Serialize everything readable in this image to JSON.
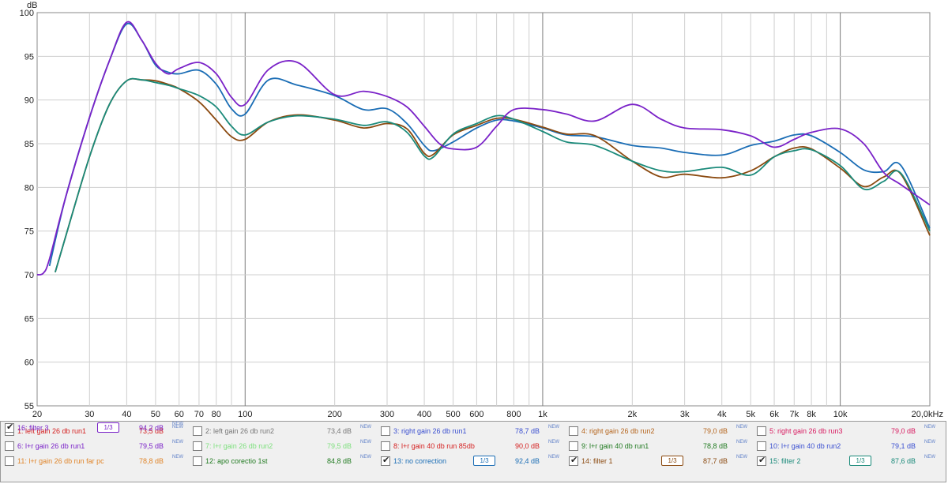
{
  "chart_data": {
    "type": "line",
    "xscale": "log",
    "xlim": [
      20,
      20000
    ],
    "ylim": [
      55,
      100
    ],
    "ylabel": "dB",
    "grid": true,
    "yticks": [
      "55",
      "60",
      "65",
      "70",
      "75",
      "80",
      "85",
      "90",
      "95",
      "100"
    ],
    "xticks": [
      {
        "f": 20,
        "label": "20"
      },
      {
        "f": 30,
        "label": "30"
      },
      {
        "f": 40,
        "label": "40"
      },
      {
        "f": 50,
        "label": "50"
      },
      {
        "f": 60,
        "label": "60"
      },
      {
        "f": 70,
        "label": "70"
      },
      {
        "f": 80,
        "label": "80"
      },
      {
        "f": 100,
        "label": "100"
      },
      {
        "f": 200,
        "label": "200"
      },
      {
        "f": 300,
        "label": "300"
      },
      {
        "f": 400,
        "label": "400"
      },
      {
        "f": 500,
        "label": "500"
      },
      {
        "f": 600,
        "label": "600"
      },
      {
        "f": 800,
        "label": "800"
      },
      {
        "f": 1000,
        "label": "1k"
      },
      {
        "f": 2000,
        "label": "2k"
      },
      {
        "f": 3000,
        "label": "3k"
      },
      {
        "f": 4000,
        "label": "4k"
      },
      {
        "f": 5000,
        "label": "5k"
      },
      {
        "f": 6000,
        "label": "6k"
      },
      {
        "f": 7000,
        "label": "7k"
      },
      {
        "f": 8000,
        "label": "8k"
      },
      {
        "f": 10000,
        "label": "10k"
      },
      {
        "f": 20000,
        "label": "20,0kHz"
      }
    ],
    "series": [
      {
        "name": "13: no correction",
        "color": "#1a6db5",
        "x": [
          22,
          25,
          30,
          35,
          40,
          45,
          50,
          55,
          60,
          70,
          80,
          90,
          100,
          120,
          150,
          200,
          250,
          300,
          350,
          400,
          430,
          500,
          600,
          700,
          800,
          1000,
          1200,
          1500,
          2000,
          2500,
          3000,
          4000,
          5000,
          6000,
          7000,
          8000,
          10000,
          12000,
          14000,
          16000,
          20000
        ],
        "y": [
          71,
          79,
          88,
          94.5,
          98.7,
          96.8,
          94,
          93.2,
          93,
          93.4,
          91.8,
          89,
          88.4,
          92.3,
          91.7,
          90.5,
          88.9,
          89,
          87.3,
          84.8,
          84.2,
          85.2,
          86.8,
          87.7,
          87.6,
          86.8,
          86,
          85.8,
          84.8,
          84.5,
          84,
          83.7,
          84.8,
          85.3,
          86,
          85.9,
          84,
          82,
          81.8,
          82.5,
          75.3
        ]
      },
      {
        "name": "14: filter 1",
        "color": "#8b4a10",
        "x": [
          23,
          25,
          30,
          35,
          40,
          45,
          50,
          55,
          60,
          70,
          80,
          90,
          100,
          120,
          150,
          200,
          250,
          300,
          350,
          400,
          430,
          500,
          600,
          700,
          800,
          1000,
          1200,
          1500,
          2000,
          2500,
          3000,
          4000,
          5000,
          6000,
          7000,
          8000,
          10000,
          12000,
          14000,
          16000,
          20000
        ],
        "y": [
          70.3,
          74.5,
          83.5,
          89.5,
          92.2,
          92.3,
          92.2,
          91.8,
          91.3,
          89.8,
          87.7,
          85.8,
          85.5,
          87.5,
          88.3,
          87.7,
          86.8,
          87.3,
          86.7,
          83.9,
          83.8,
          86,
          87.1,
          87.9,
          87.8,
          86.9,
          86.1,
          85.9,
          83,
          81.2,
          81.5,
          81.1,
          81.9,
          83.5,
          84.5,
          84.4,
          82.2,
          80.1,
          81.2,
          81.5,
          74.5
        ]
      },
      {
        "name": "15: filter 2",
        "color": "#1a8a7a",
        "x": [
          23,
          25,
          30,
          35,
          40,
          45,
          50,
          55,
          60,
          70,
          80,
          90,
          100,
          120,
          150,
          200,
          250,
          300,
          350,
          400,
          430,
          500,
          600,
          700,
          800,
          1000,
          1200,
          1500,
          2000,
          2500,
          3000,
          4000,
          5000,
          6000,
          7000,
          8000,
          10000,
          12000,
          14000,
          16000,
          20000
        ],
        "y": [
          70.3,
          74.5,
          83.5,
          89.5,
          92.2,
          92.3,
          92,
          91.7,
          91.3,
          90.5,
          89.2,
          87,
          86,
          87.5,
          88.2,
          87.8,
          87.1,
          87.5,
          86.3,
          83.6,
          83.5,
          86.1,
          87.3,
          88.2,
          87.8,
          86.4,
          85.2,
          84.8,
          83,
          81.9,
          81.8,
          82.3,
          81.4,
          83.5,
          84.2,
          84.3,
          82.5,
          79.8,
          80.7,
          81.6,
          75
        ]
      },
      {
        "name": "16: filter 3",
        "color": "#7a22c8",
        "x": [
          20,
          21,
          22,
          25,
          30,
          35,
          40,
          45,
          50,
          55,
          60,
          70,
          80,
          90,
          100,
          120,
          150,
          200,
          250,
          300,
          350,
          400,
          450,
          500,
          600,
          700,
          800,
          1000,
          1200,
          1500,
          2000,
          2500,
          3000,
          4000,
          5000,
          6000,
          7000,
          8000,
          10000,
          12000,
          14000,
          16000,
          20000
        ],
        "y": [
          70,
          70.2,
          71.8,
          79,
          88,
          94.5,
          98.9,
          96.8,
          94.2,
          93,
          93.6,
          94.3,
          93,
          90.3,
          89.5,
          93.5,
          94.3,
          90.6,
          91,
          90.4,
          89.2,
          87,
          85,
          84.4,
          84.6,
          87,
          88.9,
          88.9,
          88.4,
          87.6,
          89.5,
          87.8,
          86.8,
          86.6,
          85.9,
          84.6,
          85.5,
          86.3,
          86.7,
          85,
          81.7,
          80.3,
          78
        ]
      }
    ]
  },
  "legend": {
    "new_tag": "NEW",
    "smooth_label": "1/3",
    "items": [
      {
        "label": "1: left gain 26 db run1",
        "value": "73,5 dB",
        "color": "#d41f1f",
        "checked": false,
        "smooth": false
      },
      {
        "label": "2: left gain 26 db run2",
        "value": "73,4 dB",
        "color": "#777777",
        "checked": false,
        "smooth": false
      },
      {
        "label": "3: right gain 26 db run1",
        "value": "78,7 dB",
        "color": "#3a4fd0",
        "checked": false,
        "smooth": false
      },
      {
        "label": "4: right gain 26 db run2",
        "value": "79,0 dB",
        "color": "#b5651d",
        "checked": false,
        "smooth": false
      },
      {
        "label": "5: right gain 26 db run3",
        "value": "79,0 dB",
        "color": "#d81b60",
        "checked": false,
        "smooth": false
      },
      {
        "label": "6: l+r gain 26 db run1",
        "value": "79,5 dB",
        "color": "#7a22c8",
        "checked": false,
        "smooth": false
      },
      {
        "label": "7: l+r gain 26 db run2",
        "value": "79,5 dB",
        "color": "#7ee07e",
        "checked": false,
        "smooth": false
      },
      {
        "label": "8: l+r gain 40 db run 85db",
        "value": "90,0 dB",
        "color": "#d41f1f",
        "checked": false,
        "smooth": false
      },
      {
        "label": "9: l+r gain 40 db run1",
        "value": "78,8 dB",
        "color": "#207a20",
        "checked": false,
        "smooth": false
      },
      {
        "label": "10: l+r gain 40 db run2",
        "value": "79,1 dB",
        "color": "#3a4fd0",
        "checked": false,
        "smooth": false
      },
      {
        "label": "11: l+r gain 26 db run far pc",
        "value": "78,8 dB",
        "color": "#e0852a",
        "checked": false,
        "smooth": false
      },
      {
        "label": "12: apo corectio 1st",
        "value": "84,8 dB",
        "color": "#207a20",
        "checked": false,
        "smooth": false
      },
      {
        "label": "13: no correction",
        "value": "92,4 dB",
        "color": "#1a6db5",
        "checked": true,
        "smooth": true
      },
      {
        "label": "14: filter 1",
        "value": "87,7 dB",
        "color": "#8b4a10",
        "checked": true,
        "smooth": true
      },
      {
        "label": "15: filter 2",
        "value": "87,6 dB",
        "color": "#1a8a7a",
        "checked": true,
        "smooth": true
      },
      {
        "label": "16: filter 3",
        "value": "94,2 dB",
        "color": "#7a22c8",
        "checked": true,
        "smooth": true
      }
    ]
  }
}
